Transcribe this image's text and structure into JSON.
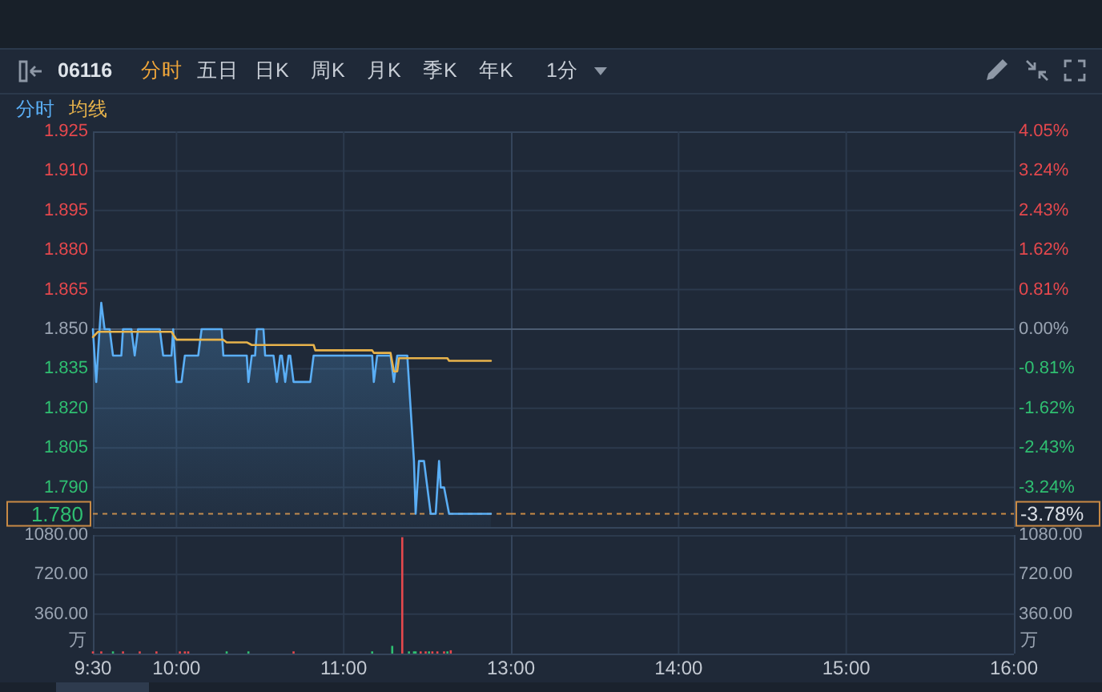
{
  "chart_data": [
    {
      "type": "line",
      "title": "06116",
      "annotations": [
        "分时",
        "五日",
        "日K",
        "周K",
        "月K",
        "季K",
        "年K",
        "1分"
      ],
      "series": [
        {
          "name": "分时",
          "type": "area",
          "color": "#5aaef5",
          "x": [
            9.5,
            9.52,
            9.53,
            9.55,
            9.57,
            9.6,
            9.62,
            9.67,
            9.68,
            9.73,
            9.75,
            9.77,
            9.9,
            9.92,
            9.97,
            9.98,
            10,
            10.03,
            10.05,
            10.13,
            10.15,
            10.27,
            10.28,
            10.42,
            10.43,
            10.45,
            10.47,
            10.48,
            10.52,
            10.53,
            10.58,
            10.6,
            10.62,
            10.63,
            10.65,
            10.67,
            10.68,
            10.7,
            10.8,
            10.82,
            11.17,
            11.18,
            11.2,
            11.28,
            11.3,
            11.32,
            11.37,
            11.38,
            11.4,
            11.42,
            11.43,
            11.45,
            11.48,
            11.5,
            11.52,
            11.55,
            11.57,
            11.58,
            11.6,
            11.63,
            11.88
          ],
          "values": [
            1.85,
            1.83,
            1.84,
            1.86,
            1.85,
            1.85,
            1.84,
            1.84,
            1.85,
            1.85,
            1.84,
            1.85,
            1.85,
            1.84,
            1.84,
            1.85,
            1.83,
            1.83,
            1.84,
            1.84,
            1.85,
            1.85,
            1.84,
            1.84,
            1.83,
            1.84,
            1.84,
            1.85,
            1.85,
            1.84,
            1.84,
            1.83,
            1.84,
            1.84,
            1.83,
            1.84,
            1.84,
            1.83,
            1.83,
            1.84,
            1.84,
            1.83,
            1.84,
            1.84,
            1.83,
            1.84,
            1.84,
            1.84,
            1.82,
            1.8,
            1.78,
            1.8,
            1.8,
            1.79,
            1.78,
            1.78,
            1.8,
            1.79,
            1.79,
            1.78,
            1.78
          ]
        },
        {
          "name": "均线",
          "type": "line",
          "color": "#e8b34b",
          "x": [
            9.5,
            9.53,
            9.97,
            10,
            10.28,
            10.3,
            10.42,
            10.45,
            10.82,
            10.83,
            11.17,
            11.18,
            11.28,
            11.3,
            11.32,
            11.33,
            11.62,
            11.63,
            11.88
          ],
          "values": [
            1.847,
            1.849,
            1.849,
            1.846,
            1.846,
            1.845,
            1.845,
            1.844,
            1.844,
            1.842,
            1.842,
            1.841,
            1.841,
            1.834,
            1.834,
            1.839,
            1.839,
            1.838,
            1.838
          ]
        }
      ],
      "xlim": [
        9.5,
        12
      ],
      "xticks": [
        {
          "value": 10,
          "label": null
        },
        {
          "value": 11,
          "label": null
        }
      ],
      "ylim": [
        1.775,
        1.925
      ],
      "yticks": [
        1.925,
        {
          "value": 1.91,
          "label": "1.910"
        },
        1.895,
        {
          "value": 1.88,
          "label": "1.880"
        },
        1.865,
        {
          "value": 1.85,
          "label": "1.850"
        },
        1.835,
        {
          "value": 1.82,
          "label": "1.820"
        },
        1.805,
        {
          "value": 1.79,
          "label": "1.790"
        }
      ],
      "ref_lines": [
        {
          "axis": "y",
          "value": 1.85,
          "color": "#4c5c72",
          "line_style": "solid"
        },
        {
          "axis": "y",
          "value": 1.78,
          "label": "1.780",
          "color": "#c88a45",
          "line_style": "dashed"
        }
      ],
      "tick_labels": "y",
      "grid": true,
      "legend": "top left"
    },
    {
      "type": "line",
      "xlim": [
        13,
        16
      ],
      "xticks": [
        {
          "value": 14,
          "label": null
        },
        {
          "value": 15,
          "label": null
        }
      ],
      "y2lim": [
        -4.05,
        4.05
      ],
      "y2ticks": [
        {
          "value": 4.05,
          "label": "4.05%"
        },
        {
          "value": 3.24,
          "label": "3.24%"
        },
        {
          "value": 2.43,
          "label": "2.43%"
        },
        {
          "value": 1.62,
          "label": "1.62%"
        },
        {
          "value": 0.81,
          "label": "0.81%"
        },
        {
          "value": 0,
          "label": "0.00%"
        },
        {
          "value": -0.81,
          "label": "-0.81%"
        },
        {
          "value": -1.62,
          "label": "-1.62%"
        },
        {
          "value": -2.43,
          "label": "-2.43%"
        },
        {
          "value": -3.24,
          "label": "-3.24%"
        }
      ],
      "ref_lines": [
        {
          "axis": "y2",
          "value": 0,
          "color": "#4c5c72",
          "line_style": "solid"
        },
        {
          "axis": "y2",
          "value": -3.78,
          "label": "-3.78%",
          "color": "#c88a45",
          "line_style": "dashed"
        }
      ],
      "tick_labels": "y",
      "grid": true
    },
    {
      "type": "bar",
      "x": [
        9.5,
        9.55,
        9.62,
        9.68,
        9.78,
        9.88,
        10.02,
        10.05,
        10.07,
        10.3,
        10.43,
        10.7,
        11.17,
        11.29,
        11.35,
        11.39,
        11.42,
        11.43,
        11.46,
        11.49,
        11.51,
        11.53,
        11.56,
        11.6,
        11.62,
        11.64
      ],
      "values": [
        20,
        20,
        20,
        20,
        20,
        20,
        20,
        20,
        20,
        20,
        20,
        20,
        20,
        70,
        1060,
        20,
        20,
        20,
        20,
        20,
        20,
        20,
        20,
        20,
        20,
        30
      ],
      "colors": [
        "#e5484d",
        "#e5484d",
        "#2fbf71",
        "#e5484d",
        "#e5484d",
        "#e5484d",
        "#e5484d",
        "#e5484d",
        "#e5484d",
        "#2fbf71",
        "#2fbf71",
        "#e5484d",
        "#2fbf71",
        "#2fbf71",
        "#e5484d",
        "#2fbf71",
        "#2fbf71",
        "#2fbf71",
        "#e5484d",
        "#e5484d",
        "#2fbf71",
        "#e5484d",
        "#e5484d",
        "#e5484d",
        "#2fbf71",
        "#e5484d"
      ],
      "xlim": [
        9.5,
        12
      ],
      "xticks": [
        {
          "value": 9.5,
          "label": "9:30"
        },
        {
          "value": 10,
          "label": "10:00"
        },
        {
          "value": 11,
          "label": "11:00"
        }
      ],
      "ylim": [
        0,
        1080
      ],
      "yticks": [
        {
          "value": 360,
          "label": "360.00"
        },
        {
          "value": 720,
          "label": "720.00"
        },
        {
          "value": 1080,
          "label": "1080.00"
        }
      ],
      "ylabel": "万",
      "grid": true
    },
    {
      "type": "bar",
      "xlim": [
        13,
        16
      ],
      "xticks": [
        {
          "value": 13,
          "label": "13:00"
        },
        {
          "value": 14,
          "label": "14:00"
        },
        {
          "value": 15,
          "label": "15:00"
        },
        {
          "value": 16,
          "label": "16:00"
        }
      ],
      "y2lim": [
        0,
        1080
      ],
      "y2ticks": [
        {
          "value": 360,
          "label": "360.00"
        },
        {
          "value": 720,
          "label": "720.00"
        },
        {
          "value": 1080,
          "label": "1080.00"
        }
      ],
      "y2label": "万",
      "grid": true
    }
  ]
}
